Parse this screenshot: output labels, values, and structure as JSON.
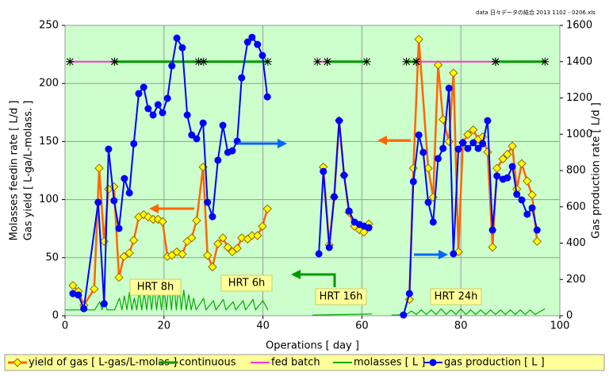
{
  "chart_data": {
    "type": "line",
    "title": "data 日々データの結合 2013 1102 - 0206.xls",
    "x_label": "Operations [ day ]",
    "y_label": [
      "Molasses feedin rate [ L/d ]",
      "Gas yield [ L-ga/L-molass. ]"
    ],
    "y2_label": "Gas production rate [ L/d ]",
    "xlim": [
      0,
      100
    ],
    "xticks": [
      0,
      20,
      40,
      60,
      80,
      100
    ],
    "ylim": [
      0,
      250
    ],
    "yticks": [
      0,
      50,
      100,
      150,
      200,
      250
    ],
    "y2lim": [
      0,
      1600
    ],
    "y2ticks": [
      0,
      200,
      400,
      600,
      800,
      1000,
      1200,
      1400,
      1600
    ],
    "grid": true,
    "plot_background": "#ccffcc",
    "legend_position": "bottom",
    "legend_background": "#ffff99",
    "annotations": [
      "HRT 8h",
      "HRT 6h",
      "HRT 16h",
      "HRT 24h"
    ],
    "series": [
      {
        "name": "yield of gas [ L-gas/L-molas ]",
        "color": "#ff6600",
        "marker": "diamond",
        "marker_color": "#ffff00",
        "axis": "y",
        "x": [
          1.6,
          2.7,
          3.8,
          5.9,
          6.9,
          7.9,
          8.8,
          9.9,
          10.9,
          11.9,
          13,
          13.9,
          14.9,
          15.9,
          16.8,
          17.8,
          18.8,
          19.7,
          20.7,
          21.6,
          22.6,
          23.7,
          24.7,
          25.6,
          26.6,
          27.9,
          28.8,
          29.8,
          30.9,
          31.9,
          32.9,
          33.8,
          34.8,
          35.7,
          36.9,
          37.8,
          38.9,
          39.9,
          40.9,
          null,
          52.2,
          53.4,
          54.4,
          55.4,
          56.4,
          57.4,
          58.5,
          59.5,
          60.4,
          61.4,
          null,
          69.6,
          70.4,
          71.5,
          73.4,
          74.4,
          75.4,
          76.4,
          77.6,
          78.5,
          79.5,
          80.4,
          81.4,
          82.5,
          83.5,
          84.4,
          85.4,
          86.4,
          87.3,
          88.5,
          89.4,
          90.4,
          91.3,
          92.3,
          93.4,
          94.4,
          95.4
        ],
        "values": [
          26,
          21,
          9,
          23,
          127,
          64,
          109,
          111,
          33,
          51,
          54,
          65,
          85,
          87,
          85,
          83,
          83,
          81,
          51,
          52,
          55,
          53,
          64,
          67,
          82,
          128,
          52,
          42,
          62,
          67,
          59,
          55,
          58,
          67,
          66,
          69,
          69,
          77,
          92,
          null,
          128,
          61,
          102,
          168,
          121,
          89,
          77,
          74,
          72,
          79,
          null,
          14,
          127,
          238,
          127,
          102,
          216,
          169,
          150,
          209,
          55,
          149,
          156,
          160,
          152,
          154,
          141,
          59,
          127,
          135,
          139,
          146,
          109,
          131,
          116,
          104,
          64
        ]
      },
      {
        "name": "continuous",
        "color": "#009900",
        "marker": "star",
        "axis": "y2",
        "x": [
          10,
          27,
          28,
          41,
          null,
          53,
          61,
          null,
          69,
          71,
          null,
          87,
          97
        ],
        "values": [
          1400,
          1400,
          1400,
          1400,
          null,
          1400,
          1400,
          null,
          1400,
          1400,
          null,
          1400,
          1400
        ]
      },
      {
        "name": "fed batch",
        "color": "#ff33cc",
        "marker": "star",
        "axis": "y2",
        "x": [
          1,
          10,
          null,
          51,
          53,
          null,
          71,
          87
        ],
        "values": [
          1400,
          1400,
          null,
          1400,
          1400,
          null,
          1400,
          1400
        ]
      },
      {
        "name": "molasses [ L ]",
        "color": "#00aa00",
        "marker": "none",
        "axis": "y",
        "x": [
          0,
          6,
          7,
          7.5,
          8,
          8.5,
          10,
          11,
          11.5,
          12,
          12.5,
          13,
          13.5,
          14,
          14.5,
          15,
          15.5,
          16,
          16.5,
          17,
          17.5,
          18,
          18.5,
          19,
          19.5,
          20,
          20.5,
          21,
          21.5,
          22,
          22.5,
          23,
          23.5,
          24,
          24.5,
          25,
          25.5,
          26,
          26.5,
          28,
          28.5,
          30,
          30.5,
          32,
          32.5,
          34,
          34.5,
          36,
          36.5,
          38,
          38.5,
          40,
          41,
          null,
          50,
          62,
          null,
          66,
          69,
          70,
          71,
          72,
          73,
          74,
          75,
          76,
          77,
          78,
          79,
          80,
          81,
          82,
          83,
          84,
          85,
          86,
          87,
          88,
          89,
          90,
          91,
          92,
          93,
          94,
          95,
          97
        ],
        "values": [
          5,
          5,
          12,
          5,
          14,
          5,
          5,
          15,
          5,
          17,
          5,
          20,
          5,
          15,
          5,
          22,
          5,
          20,
          5,
          22,
          5,
          25,
          5,
          22,
          5,
          25,
          5,
          27,
          5,
          28,
          5,
          27,
          5,
          22,
          5,
          18,
          5,
          15,
          5,
          15,
          5,
          13,
          5,
          14,
          5,
          12,
          5,
          13,
          5,
          14,
          5,
          13,
          5,
          null,
          0.5,
          1.5,
          null,
          0.5,
          1,
          4,
          1,
          5,
          1,
          5,
          1,
          6,
          1,
          5,
          1,
          6,
          1,
          5,
          1,
          5,
          1,
          5,
          1,
          5,
          1,
          5,
          1,
          5,
          1,
          5,
          1,
          6
        ]
      },
      {
        "name": "gas production [ L ]",
        "color": "#0000ff",
        "marker": "circle",
        "axis": "y2",
        "x": [
          1.6,
          2.7,
          3.8,
          6.7,
          7.9,
          8.8,
          9.9,
          10.9,
          12,
          13,
          13.9,
          14.9,
          15.9,
          16.8,
          17.8,
          18.8,
          19.7,
          20.7,
          21.6,
          22.6,
          23.7,
          24.7,
          25.6,
          26.6,
          27.9,
          28.8,
          29.8,
          30.9,
          31.9,
          32.9,
          33.8,
          34.8,
          35.7,
          36.9,
          37.8,
          38.9,
          39.9,
          40.9,
          null,
          51.3,
          52.2,
          53.4,
          54.4,
          55.4,
          56.4,
          57.4,
          58.5,
          59.5,
          60.4,
          61.4,
          null,
          68.4,
          69.6,
          70.4,
          71.5,
          72.4,
          73.4,
          74.4,
          75.4,
          76.4,
          77.6,
          78.5,
          79.5,
          80.4,
          81.4,
          82.5,
          83.5,
          84.4,
          85.4,
          86.4,
          87.3,
          88.5,
          89.4,
          90.4,
          91.3,
          92.3,
          93.4,
          94.4,
          95.4
        ],
        "values": [
          122,
          114,
          39,
          625,
          66,
          918,
          634,
          481,
          756,
          677,
          948,
          1224,
          1259,
          1141,
          1106,
          1163,
          1119,
          1198,
          1377,
          1530,
          1477,
          1106,
          996,
          975,
          1062,
          625,
          546,
          857,
          1049,
          900,
          909,
          962,
          1311,
          1508,
          1534,
          1495,
          1434,
          1206,
          null,
          341,
          795,
          376,
          656,
          1075,
          774,
          577,
          516,
          503,
          494,
          485,
          null,
          4,
          122,
          739,
          996,
          900,
          625,
          516,
          866,
          922,
          1254,
          341,
          918,
          953,
          922,
          953,
          922,
          948,
          1075,
          472,
          770,
          752,
          760,
          822,
          669,
          638,
          559,
          594,
          472
        ]
      }
    ]
  }
}
